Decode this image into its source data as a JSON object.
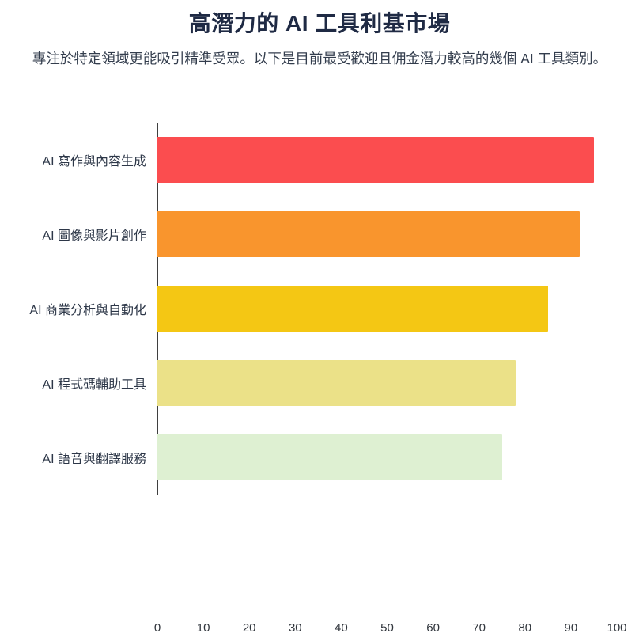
{
  "page": {
    "title": "高潛力的 AI 工具利基市場",
    "subtitle": "專注於特定領域更能吸引精準受眾。以下是目前最受歡迎且佣金潛力較高的幾個 AI 工具類別。"
  },
  "chart_data": {
    "type": "bar",
    "orientation": "horizontal",
    "title": "高潛力的 AI 工具利基市場",
    "categories": [
      "AI 寫作與內容生成",
      "AI 圖像與影片創作",
      "AI 商業分析與自動化",
      "AI 程式碼輔助工具",
      "AI 語音與翻譯服務"
    ],
    "values": [
      95,
      92,
      85,
      78,
      75
    ],
    "colors": [
      "#fb4d4f",
      "#f9952d",
      "#f4c714",
      "#ebe188",
      "#def0d2"
    ],
    "xlabel": "",
    "ylabel": "",
    "xlim": [
      0,
      100
    ],
    "x_ticks": [
      0,
      10,
      20,
      30,
      40,
      50,
      60,
      70,
      80,
      90,
      100
    ],
    "grid": false,
    "legend": false,
    "axis_line_color": "#3f3f3f"
  }
}
